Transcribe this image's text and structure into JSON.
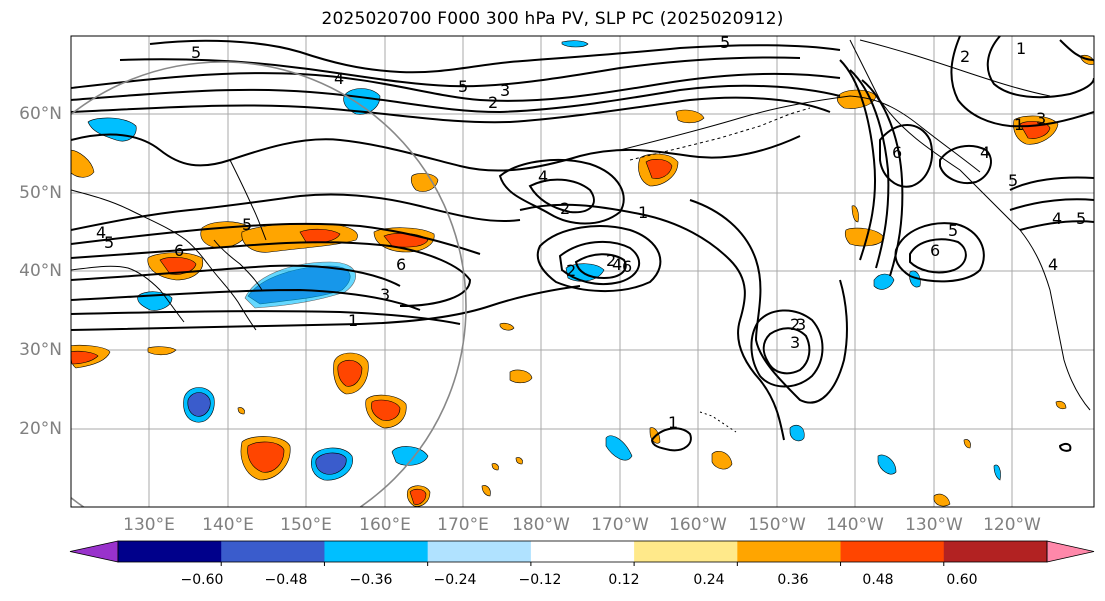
{
  "title": "2025020700 F000 300 hPa PV, SLP PC (2025020912)",
  "latitude_labels": [
    "60°N",
    "50°N",
    "40°N",
    "30°N",
    "20°N"
  ],
  "longitude_labels": [
    "130°E",
    "140°E",
    "150°E",
    "160°E",
    "170°E",
    "180°W",
    "170°W",
    "160°W",
    "150°W",
    "140°W",
    "130°W",
    "120°W"
  ],
  "colorbar": {
    "tick_labels": [
      "−0.60",
      "−0.48",
      "−0.36",
      "−0.24",
      "−0.12",
      "0.12",
      "0.24",
      "0.36",
      "0.48",
      "0.60"
    ],
    "colors": [
      "#9932cc",
      "#00008b",
      "#3a5ccc",
      "#00bfff",
      "#b0e2ff",
      "#ffffff",
      "#ffe98a",
      "#ffa500",
      "#ff4500",
      "#b22222",
      "#ff88aa"
    ]
  },
  "contour_labels": [
    "5",
    "4",
    "5",
    "3",
    "2",
    "5",
    "2",
    "1",
    "2",
    "4",
    "5",
    "6",
    "4",
    "5",
    "6",
    "4",
    "2",
    "1",
    "2",
    "6",
    "3",
    "1",
    "2",
    "3",
    "1",
    "6",
    "5",
    "6",
    "5",
    "4",
    "1",
    "4",
    "3",
    "5",
    "3",
    "4"
  ]
}
